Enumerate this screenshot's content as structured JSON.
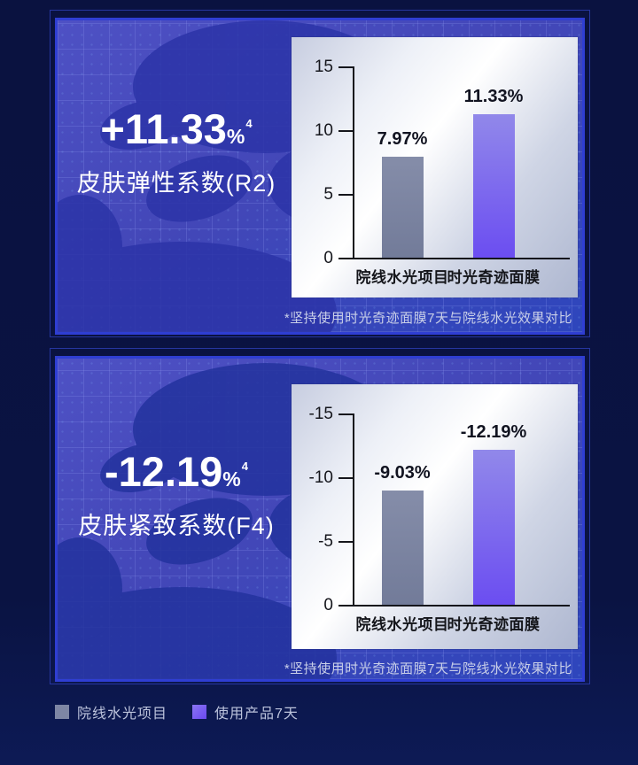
{
  "panels": [
    {
      "headline": "+11.33",
      "headline_unit": "%",
      "headline_sup": "4",
      "subtitle": "皮肤弹性系数(R2)",
      "footnote": "*坚持使用时光奇迹面膜7天与院线水光效果对比"
    },
    {
      "headline": "-12.19",
      "headline_unit": "%",
      "headline_sup": "4",
      "subtitle": "皮肤紧致系数(F4)",
      "footnote": "*坚持使用时光奇迹面膜7天与院线水光效果对比"
    }
  ],
  "chart_data": [
    {
      "type": "bar",
      "title": "皮肤弹性系数(R2)",
      "categories": [
        "院线水光项目",
        "时光奇迹面膜"
      ],
      "values": [
        7.97,
        11.33
      ],
      "value_labels": [
        "7.97%",
        "11.33%"
      ],
      "yticks": [
        15,
        10,
        5,
        0
      ],
      "ytick_labels": [
        "15",
        "10",
        "5",
        "0"
      ],
      "ylim": [
        0,
        15
      ],
      "grid": false,
      "bar_colors": [
        "#727b99",
        "#6b4df1"
      ]
    },
    {
      "type": "bar",
      "title": "皮肤紧致系数(F4)",
      "categories": [
        "院线水光项目",
        "时光奇迹面膜"
      ],
      "values": [
        -9.03,
        -12.19
      ],
      "value_labels": [
        "-9.03%",
        "-12.19%"
      ],
      "yticks": [
        -15,
        -10,
        -5,
        0
      ],
      "ytick_labels": [
        "-15",
        "-10",
        "-5",
        "0"
      ],
      "ylim": [
        0,
        -15
      ],
      "grid": false,
      "bar_colors": [
        "#727b99",
        "#6b4df1"
      ]
    }
  ],
  "legend": {
    "items": [
      {
        "label": "院线水光项目",
        "color": "#7e86a4"
      },
      {
        "label": "使用产品7天",
        "color": "#6a48f0"
      }
    ]
  },
  "colors": {
    "page_bg": "#0a1240",
    "panel_fill": "#4347b8",
    "panel_border": "#2f3ed2",
    "card_bg_light": "#ffffff",
    "card_bg_shade": "#aeb7d0",
    "bar_gray": "#727b99",
    "bar_purple_top": "#9188ea",
    "bar_purple_bottom": "#6b4df1",
    "headline_text": "#ffffff",
    "footnote_text": "#c9cfe8"
  }
}
